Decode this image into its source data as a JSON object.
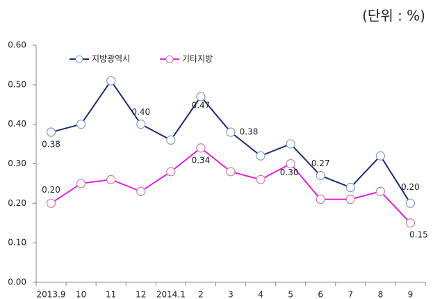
{
  "chart_data": {
    "type": "line",
    "unit": "(단위 : %)",
    "categories": [
      "2013.9",
      "10",
      "11",
      "12",
      "2014.1",
      "2",
      "3",
      "4",
      "5",
      "6",
      "7",
      "8",
      "9"
    ],
    "series": [
      {
        "name": "지방광역시",
        "color": "#1f2a6e",
        "values": [
          0.38,
          0.4,
          0.51,
          0.4,
          0.36,
          0.47,
          0.38,
          0.32,
          0.35,
          0.27,
          0.24,
          0.32,
          0.2
        ],
        "value_labels": [
          "0.38",
          null,
          null,
          "0.40",
          null,
          "0.47",
          "0.38",
          null,
          null,
          "0.27",
          null,
          null,
          "0.20"
        ]
      },
      {
        "name": "기타지방",
        "color": "#e020d8",
        "values": [
          0.2,
          0.25,
          0.26,
          0.23,
          0.28,
          0.34,
          0.28,
          0.26,
          0.3,
          0.21,
          0.21,
          0.23,
          0.15
        ],
        "value_labels": [
          "0.20",
          null,
          null,
          null,
          null,
          "0.34",
          null,
          null,
          "0.30",
          null,
          null,
          null,
          "0.15"
        ]
      }
    ],
    "ylim": [
      0,
      0.6
    ],
    "yticks": [
      {
        "value": 0,
        "label": "0.00"
      },
      {
        "value": 0.1,
        "label": "0.10"
      },
      {
        "value": 0.2,
        "label": "0.20"
      },
      {
        "value": 0.3,
        "label": "0.30"
      },
      {
        "value": 0.4,
        "label": "0.40"
      },
      {
        "value": 0.5,
        "label": "0.50"
      },
      {
        "value": 0.6,
        "label": "0.60"
      }
    ],
    "grid": false,
    "legend": "top-left"
  }
}
